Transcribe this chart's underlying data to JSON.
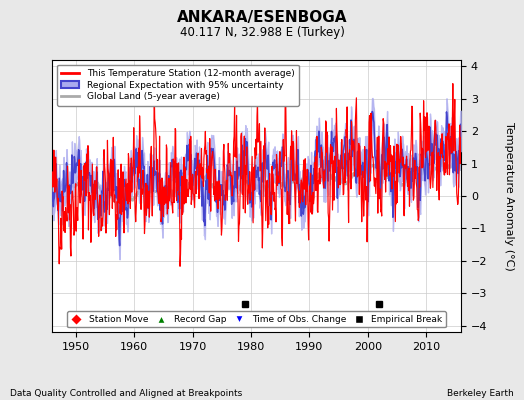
{
  "title": "ANKARA/ESENBOGA",
  "subtitle": "40.117 N, 32.988 E (Turkey)",
  "xlabel_left": "Data Quality Controlled and Aligned at Breakpoints",
  "xlabel_right": "Berkeley Earth",
  "ylabel": "Temperature Anomaly (°C)",
  "xlim": [
    1946,
    2016
  ],
  "ylim": [
    -4.2,
    4.2
  ],
  "yticks": [
    -4,
    -3,
    -2,
    -1,
    0,
    1,
    2,
    3,
    4
  ],
  "xticks": [
    1950,
    1960,
    1970,
    1980,
    1990,
    2000,
    2010
  ],
  "station_color": "#FF0000",
  "regional_color": "#4444CC",
  "regional_fill_color": "#AAAAEE",
  "global_color": "#AAAAAA",
  "background_color": "#E8E8E8",
  "plot_bg_color": "#FFFFFF",
  "empirical_breaks": [
    1979,
    2002
  ],
  "seed": 42
}
